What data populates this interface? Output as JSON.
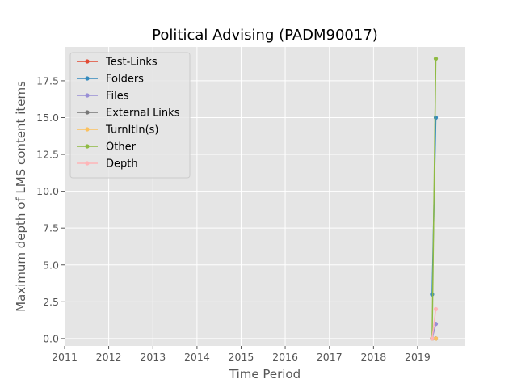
{
  "chart_data": {
    "type": "line",
    "title": "Political Advising (PADM90017)",
    "xlabel": "Time Period",
    "ylabel": "Maximum depth of LMS content items",
    "xlim": [
      "2011-01-01",
      "2020-01-31"
    ],
    "ylim": [
      -0.5,
      19.8
    ],
    "xticks": [
      "2011",
      "2012",
      "2013",
      "2014",
      "2015",
      "2016",
      "2017",
      "2018",
      "2019"
    ],
    "yticks": [
      0.0,
      2.5,
      5.0,
      7.5,
      10.0,
      12.5,
      15.0,
      17.5
    ],
    "ytick_labels": [
      "0.0",
      "2.5",
      "5.0",
      "7.5",
      "10.0",
      "12.5",
      "15.0",
      "17.5"
    ],
    "grid": true,
    "legend_position": "top-left",
    "series": [
      {
        "name": "Test-Links",
        "color": "#E24A33",
        "points": [
          [
            "2019-05-01",
            0
          ],
          [
            "2019-06-01",
            0
          ]
        ]
      },
      {
        "name": "Folders",
        "color": "#348ABD",
        "points": [
          [
            "2019-05-01",
            3
          ],
          [
            "2019-06-01",
            15
          ]
        ]
      },
      {
        "name": "Files",
        "color": "#988ED5",
        "points": [
          [
            "2019-05-01",
            0
          ],
          [
            "2019-06-01",
            1
          ]
        ]
      },
      {
        "name": "External Links",
        "color": "#777777",
        "points": [
          [
            "2019-05-01",
            0
          ],
          [
            "2019-06-01",
            0
          ]
        ]
      },
      {
        "name": "TurnItIn(s)",
        "color": "#FBC15E",
        "points": [
          [
            "2019-05-01",
            0
          ],
          [
            "2019-06-01",
            0
          ]
        ]
      },
      {
        "name": "Other",
        "color": "#8EBA42",
        "points": [
          [
            "2019-05-01",
            0
          ],
          [
            "2019-06-01",
            19
          ]
        ]
      },
      {
        "name": "Depth",
        "color": "#FFB5B8",
        "points": [
          [
            "2019-05-01",
            0
          ],
          [
            "2019-06-01",
            2
          ]
        ]
      }
    ]
  }
}
